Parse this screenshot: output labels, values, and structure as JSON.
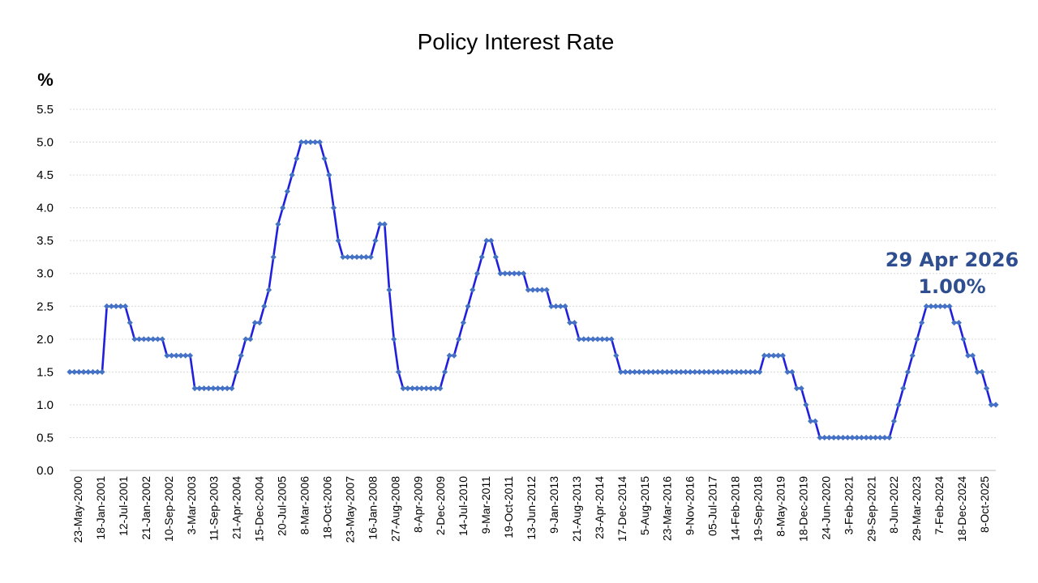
{
  "chart_data": {
    "type": "line",
    "title": "Policy Interest Rate",
    "ylabel": "%",
    "xlabel": "",
    "ylim": [
      0,
      5.5
    ],
    "yticks": [
      "0.0",
      "0.5",
      "1.0",
      "1.5",
      "2.0",
      "2.5",
      "3.0",
      "3.5",
      "4.0",
      "4.5",
      "5.0",
      "5.5"
    ],
    "grid": true,
    "legend": "none",
    "x_tick_labels": [
      "23-May-2000",
      "18-Jan-2001",
      "12-Jul-2001",
      "21-Jan-2002",
      "10-Sep-2002",
      "3-Mar-2003",
      "11-Sep-2003",
      "21-Apr-2004",
      "15-Dec-2004",
      "20-Jul-2005",
      "8-Mar-2006",
      "18-Oct-2006",
      "23-May-2007",
      "16-Jan-2008",
      "27-Aug-2008",
      "8-Apr-2009",
      "2-Dec-2009",
      "14-Jul-2010",
      "9-Mar-2011",
      "19-Oct-2011",
      "13-Jun-2012",
      "9-Jan-2013",
      "21-Aug-2013",
      "23-Apr-2014",
      "17-Dec-2014",
      "5-Aug-2015",
      "23-Mar-2016",
      "9-Nov-2016",
      "05-Jul-2017",
      "14-Feb-2018",
      "19-Sep-2018",
      "8-May-2019",
      "18-Dec-2019",
      "24-Jun-2020",
      "3-Feb-2021",
      "29-Sep-2021",
      "8-Jun-2022",
      "29-Mar-2023",
      "7-Feb-2024",
      "18-Dec-2024",
      "8-Oct-2025"
    ],
    "series": [
      {
        "values": [
          1.5,
          1.5,
          1.5,
          1.5,
          1.5,
          1.5,
          1.5,
          1.5,
          2.5,
          2.5,
          2.5,
          2.5,
          2.5,
          2.25,
          2.0,
          2.0,
          2.0,
          2.0,
          2.0,
          2.0,
          2.0,
          1.75,
          1.75,
          1.75,
          1.75,
          1.75,
          1.75,
          1.25,
          1.25,
          1.25,
          1.25,
          1.25,
          1.25,
          1.25,
          1.25,
          1.25,
          1.5,
          1.75,
          2.0,
          2.0,
          2.25,
          2.25,
          2.5,
          2.75,
          3.25,
          3.75,
          4.0,
          4.25,
          4.5,
          4.75,
          5.0,
          5.0,
          5.0,
          5.0,
          5.0,
          4.75,
          4.5,
          4.0,
          3.5,
          3.25,
          3.25,
          3.25,
          3.25,
          3.25,
          3.25,
          3.25,
          3.5,
          3.75,
          3.75,
          2.75,
          2.0,
          1.5,
          1.25,
          1.25,
          1.25,
          1.25,
          1.25,
          1.25,
          1.25,
          1.25,
          1.25,
          1.5,
          1.75,
          1.75,
          2.0,
          2.25,
          2.5,
          2.75,
          3.0,
          3.25,
          3.5,
          3.5,
          3.25,
          3.0,
          3.0,
          3.0,
          3.0,
          3.0,
          3.0,
          2.75,
          2.75,
          2.75,
          2.75,
          2.75,
          2.5,
          2.5,
          2.5,
          2.5,
          2.25,
          2.25,
          2.0,
          2.0,
          2.0,
          2.0,
          2.0,
          2.0,
          2.0,
          2.0,
          1.75,
          1.5,
          1.5,
          1.5,
          1.5,
          1.5,
          1.5,
          1.5,
          1.5,
          1.5,
          1.5,
          1.5,
          1.5,
          1.5,
          1.5,
          1.5,
          1.5,
          1.5,
          1.5,
          1.5,
          1.5,
          1.5,
          1.5,
          1.5,
          1.5,
          1.5,
          1.5,
          1.5,
          1.5,
          1.5,
          1.5,
          1.5,
          1.75,
          1.75,
          1.75,
          1.75,
          1.75,
          1.5,
          1.5,
          1.25,
          1.25,
          1.0,
          0.75,
          0.75,
          0.5,
          0.5,
          0.5,
          0.5,
          0.5,
          0.5,
          0.5,
          0.5,
          0.5,
          0.5,
          0.5,
          0.5,
          0.5,
          0.5,
          0.5,
          0.5,
          0.75,
          1.0,
          1.25,
          1.5,
          1.75,
          2.0,
          2.25,
          2.5,
          2.5,
          2.5,
          2.5,
          2.5,
          2.5,
          2.25,
          2.25,
          2.0,
          1.75,
          1.75,
          1.5,
          1.5,
          1.25,
          1.0,
          1.0
        ]
      }
    ],
    "annotation": {
      "line1": "29 Apr 2026",
      "line2": "1.00%"
    },
    "colors": {
      "line": "#1F1FDD",
      "marker": "#4472C4",
      "annotation": "#2E4E8F",
      "grid": "#D9D9D9"
    }
  }
}
